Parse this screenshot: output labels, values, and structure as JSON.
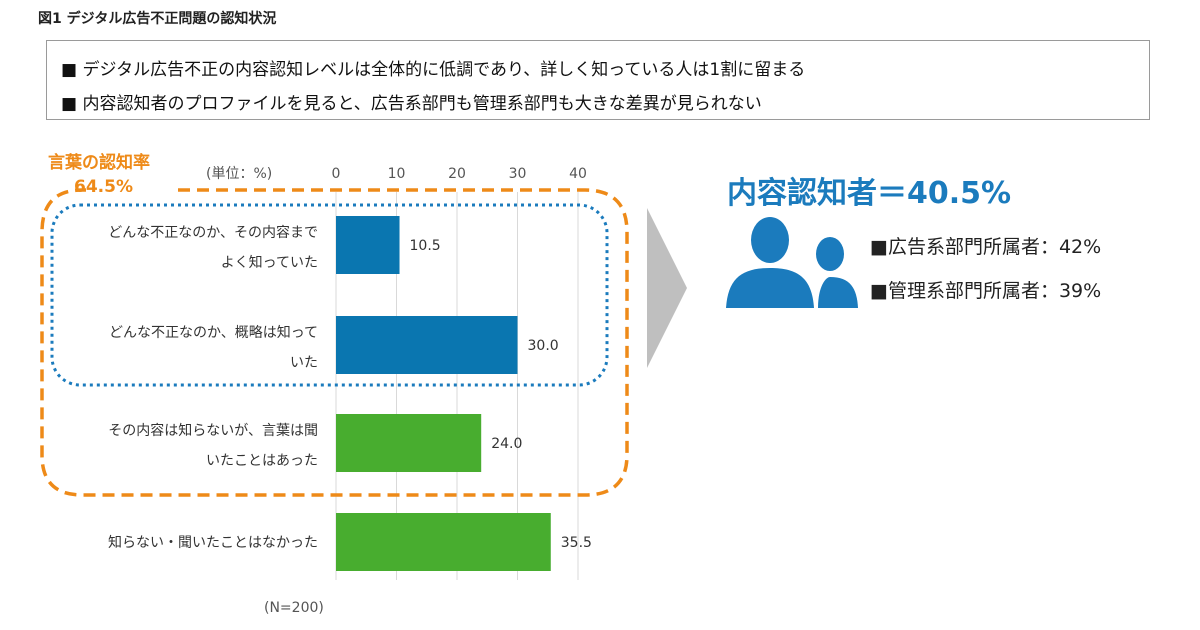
{
  "figure_title": "図1 デジタル広告不正問題の認知状況",
  "summary_bullets": [
    "■ デジタル広告不正の内容認知レベルは全体的に低調であり、詳しく知っている人は1割に留まる",
    "■ 内容認知者のプロファイルを見ると、広告系部門も管理系部門も大きな差異が見られない"
  ],
  "word_awareness": {
    "label": "言葉の認知率",
    "value": "64.5%"
  },
  "content_awareness": {
    "title": "内容認知者＝40.5%",
    "stats": [
      "■広告系部門所属者：42%",
      "■管理系部門所属者：39%"
    ],
    "icon": "persons-icon"
  },
  "colors": {
    "blue": "#0a76b0",
    "green": "#48ad2f",
    "orange": "#ee8a18",
    "dotted_blue": "#1b7bbd",
    "arrow": "#bfbfbf"
  },
  "chart_data": {
    "type": "bar",
    "orientation": "horizontal",
    "unit_label": "(単位：%)",
    "note": "(N=200)",
    "xlim": [
      0,
      40
    ],
    "ticks": [
      0,
      10,
      20,
      30,
      40
    ],
    "grid": true,
    "categories": [
      [
        "どんな不正なのか、その内容まで",
        "よく知っていた"
      ],
      [
        "どんな不正なのか、概略は知って",
        "いた"
      ],
      [
        "その内容は知らないが、言葉は聞",
        "いたことはあった"
      ],
      [
        "知らない・聞いたことはなかった"
      ]
    ],
    "values": [
      10.5,
      30.0,
      24.0,
      35.5
    ],
    "value_labels": [
      "10.5",
      "30.0",
      "24.0",
      "35.5"
    ],
    "bar_colors": [
      "#0a76b0",
      "#0a76b0",
      "#48ad2f",
      "#48ad2f"
    ]
  }
}
